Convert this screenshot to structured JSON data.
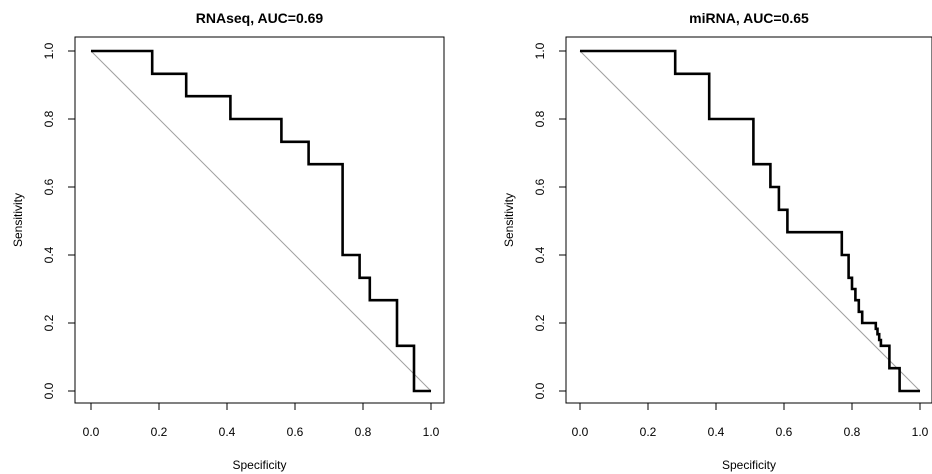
{
  "chart_data": [
    {
      "type": "line",
      "title": "RNAseq, AUC=0.69",
      "xlabel": "Specificity",
      "ylabel": "Sensitivity",
      "x_reversed": true,
      "xlim": [
        1.0,
        0.0
      ],
      "ylim": [
        0.0,
        1.0
      ],
      "x_ticks": [
        "0.0",
        "0.2",
        "0.4",
        "0.6",
        "0.8",
        "1.0"
      ],
      "y_ticks": [
        "0.0",
        "0.2",
        "0.4",
        "0.6",
        "0.8",
        "1.0"
      ],
      "reference_line": {
        "from": [
          0.0,
          1.0
        ],
        "to": [
          1.0,
          0.0
        ],
        "color": "#a0a0a0"
      },
      "series": [
        {
          "specificity": [
            0.0,
            0.18,
            0.18,
            0.28,
            0.28,
            0.41,
            0.41,
            0.56,
            0.56,
            0.64,
            0.64,
            0.74,
            0.74,
            0.79,
            0.79,
            0.82,
            0.82,
            0.9,
            0.9,
            0.95,
            0.95,
            1.0
          ],
          "sensitivity": [
            1.0,
            1.0,
            0.933,
            0.933,
            0.867,
            0.867,
            0.8,
            0.8,
            0.733,
            0.733,
            0.667,
            0.667,
            0.4,
            0.4,
            0.333,
            0.333,
            0.267,
            0.267,
            0.133,
            0.133,
            0.0,
            0.0
          ]
        }
      ]
    },
    {
      "type": "line",
      "title": "miRNA, AUC=0.65",
      "xlabel": "Specificity",
      "ylabel": "Sensitivity",
      "x_reversed": true,
      "xlim": [
        1.0,
        0.0
      ],
      "ylim": [
        0.0,
        1.0
      ],
      "x_ticks": [
        "0.0",
        "0.2",
        "0.4",
        "0.6",
        "0.8",
        "1.0"
      ],
      "y_ticks": [
        "0.0",
        "0.2",
        "0.4",
        "0.6",
        "0.8",
        "1.0"
      ],
      "reference_line": {
        "from": [
          0.0,
          1.0
        ],
        "to": [
          1.0,
          0.0
        ],
        "color": "#a0a0a0"
      },
      "series": [
        {
          "specificity": [
            0.0,
            0.28,
            0.28,
            0.38,
            0.38,
            0.51,
            0.51,
            0.56,
            0.56,
            0.585,
            0.585,
            0.61,
            0.61,
            0.77,
            0.77,
            0.79,
            0.79,
            0.8,
            0.8,
            0.81,
            0.81,
            0.82,
            0.82,
            0.83,
            0.83,
            0.87,
            0.87,
            0.875,
            0.875,
            0.88,
            0.88,
            0.885,
            0.885,
            0.89,
            0.89,
            0.91,
            0.91,
            0.94,
            0.94,
            1.0
          ],
          "sensitivity": [
            1.0,
            1.0,
            0.933,
            0.933,
            0.8,
            0.8,
            0.667,
            0.667,
            0.6,
            0.6,
            0.533,
            0.533,
            0.467,
            0.467,
            0.4,
            0.4,
            0.333,
            0.333,
            0.3,
            0.3,
            0.267,
            0.267,
            0.233,
            0.233,
            0.2,
            0.2,
            0.183,
            0.183,
            0.167,
            0.167,
            0.15,
            0.15,
            0.133,
            0.133,
            0.133,
            0.133,
            0.067,
            0.067,
            0.0,
            0.0
          ]
        }
      ]
    }
  ]
}
